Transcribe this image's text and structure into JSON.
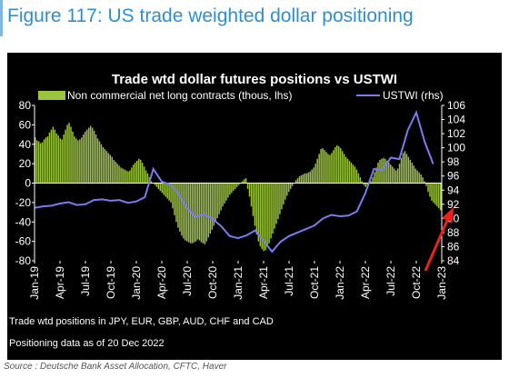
{
  "figure_title": "Figure 117: US trade weighted dollar positioning",
  "notes": [
    "Trade wtd positions in JPY, EUR, GBP, AUD, CHF and CAD",
    "Positioning data as of 20 Dec 2022"
  ],
  "source": "Source : Deutsche Bank Asset Allocation, CFTC, Haver",
  "colors": {
    "bars": "#9bc43c",
    "line": "#7b7bf0",
    "panel_background": "#000000",
    "text": "#ffffff",
    "arrow": "#e8231e",
    "figure_title": "#2c8fd6"
  },
  "chart_data": {
    "type": "bar+line",
    "title": "Trade wtd dollar futures positions  vs USTWI",
    "x_start": "2019-01",
    "x_end": "2023-01",
    "x_tick_labels": [
      "Jan-19",
      "Apr-19",
      "Jul-19",
      "Oct-19",
      "Jan-20",
      "Apr-20",
      "Jul-20",
      "Oct-20",
      "Jan-21",
      "Apr-21",
      "Jul-21",
      "Oct-21",
      "Jan-22",
      "Apr-22",
      "Jul-22",
      "Oct-22",
      "Jan-23"
    ],
    "y_left": {
      "label": "Non commercial net long contracts (thous, lhs)",
      "min": -80,
      "max": 80,
      "ticks": [
        -80,
        -60,
        -40,
        -20,
        0,
        20,
        40,
        60,
        80
      ]
    },
    "y_right": {
      "label": "USTWI (rhs)",
      "min": 84,
      "max": 106,
      "ticks": [
        84,
        86,
        88,
        90,
        92,
        94,
        96,
        98,
        100,
        102,
        104,
        106
      ]
    },
    "legend_position": "top",
    "grid": false,
    "series": [
      {
        "name": "Non commercial net long contracts (thous, lhs)",
        "kind": "bar",
        "axis": "left",
        "values": [
          47,
          44,
          43,
          41,
          42,
          45,
          47,
          48,
          52,
          55,
          58,
          55,
          51,
          49,
          46,
          45,
          50,
          55,
          60,
          62,
          58,
          53,
          48,
          46,
          44,
          45,
          47,
          50,
          53,
          55,
          57,
          59,
          57,
          54,
          50,
          46,
          43,
          40,
          37,
          35,
          33,
          31,
          29,
          27,
          24,
          22,
          20,
          18,
          16,
          15,
          14,
          13,
          12,
          13,
          16,
          19,
          21,
          23,
          25,
          24,
          21,
          17,
          13,
          10,
          6,
          2,
          0,
          -2,
          -4,
          -6,
          -8,
          -10,
          -12,
          -14,
          -16,
          -18,
          -20,
          -26,
          -33,
          -40,
          -46,
          -50,
          -54,
          -57,
          -59,
          -60,
          -61,
          -62,
          -62,
          -61,
          -60,
          -58,
          -59,
          -61,
          -62,
          -63,
          -60,
          -56,
          -52,
          -48,
          -44,
          -40,
          -36,
          -32,
          -28,
          -24,
          -21,
          -18,
          -15,
          -12,
          -10,
          -8,
          -6,
          -4,
          -2,
          0,
          2,
          4,
          5,
          -6,
          -14,
          -24,
          -34,
          -44,
          -53,
          -60,
          -65,
          -68,
          -70,
          -69,
          -66,
          -62,
          -57,
          -52,
          -47,
          -42,
          -37,
          -32,
          -27,
          -22,
          -17,
          -13,
          -9,
          -6,
          -3,
          0,
          3,
          5,
          7,
          8,
          9,
          10,
          10,
          11,
          12,
          14,
          16,
          20,
          25,
          30,
          35,
          36,
          34,
          32,
          30,
          29,
          31,
          34,
          37,
          39,
          38,
          36,
          33,
          30,
          27,
          25,
          23,
          21,
          19,
          17,
          14,
          10,
          6,
          2,
          -2,
          -4,
          -3,
          -1,
          2,
          6,
          11,
          16,
          21,
          24,
          25,
          26,
          25,
          23,
          21,
          19,
          17,
          15,
          13,
          15,
          20,
          26,
          31,
          33,
          30,
          27,
          24,
          21,
          18,
          15,
          13,
          11,
          9,
          6,
          2,
          -3,
          -9,
          -14,
          -18,
          -20,
          -22,
          -24,
          -26,
          -28
        ]
      },
      {
        "name": "USTWI (rhs)",
        "kind": "line",
        "axis": "right",
        "points": [
          [
            "2019-01",
            91.5
          ],
          [
            "2019-02",
            91.7
          ],
          [
            "2019-03",
            91.8
          ],
          [
            "2019-04",
            92.1
          ],
          [
            "2019-05",
            92.3
          ],
          [
            "2019-06",
            91.9
          ],
          [
            "2019-07",
            92.0
          ],
          [
            "2019-08",
            92.6
          ],
          [
            "2019-09",
            92.7
          ],
          [
            "2019-10",
            92.5
          ],
          [
            "2019-11",
            92.6
          ],
          [
            "2019-12",
            92.2
          ],
          [
            "2020-01",
            92.4
          ],
          [
            "2020-02",
            93.0
          ],
          [
            "2020-03",
            97.0
          ],
          [
            "2020-04",
            95.2
          ],
          [
            "2020-05",
            94.8
          ],
          [
            "2020-06",
            93.5
          ],
          [
            "2020-07",
            91.5
          ],
          [
            "2020-08",
            90.2
          ],
          [
            "2020-09",
            90.6
          ],
          [
            "2020-10",
            89.9
          ],
          [
            "2020-11",
            88.9
          ],
          [
            "2020-12",
            87.5
          ],
          [
            "2021-01",
            87.2
          ],
          [
            "2021-02",
            87.6
          ],
          [
            "2021-03",
            88.3
          ],
          [
            "2021-04",
            86.8
          ],
          [
            "2021-05",
            85.3
          ],
          [
            "2021-06",
            86.7
          ],
          [
            "2021-07",
            87.5
          ],
          [
            "2021-08",
            88.0
          ],
          [
            "2021-09",
            88.5
          ],
          [
            "2021-10",
            89.0
          ],
          [
            "2021-11",
            90.0
          ],
          [
            "2021-12",
            90.5
          ],
          [
            "2022-01",
            90.3
          ],
          [
            "2022-02",
            90.4
          ],
          [
            "2022-03",
            91.0
          ],
          [
            "2022-04",
            93.6
          ],
          [
            "2022-05",
            97.0
          ],
          [
            "2022-06",
            96.8
          ],
          [
            "2022-07",
            98.6
          ],
          [
            "2022-08",
            98.4
          ],
          [
            "2022-09",
            102.5
          ],
          [
            "2022-10",
            105.0
          ],
          [
            "2022-11",
            100.8
          ],
          [
            "2022-12",
            97.7
          ]
        ]
      }
    ],
    "annotations": [
      "arrow pointing to latest positioning"
    ]
  }
}
